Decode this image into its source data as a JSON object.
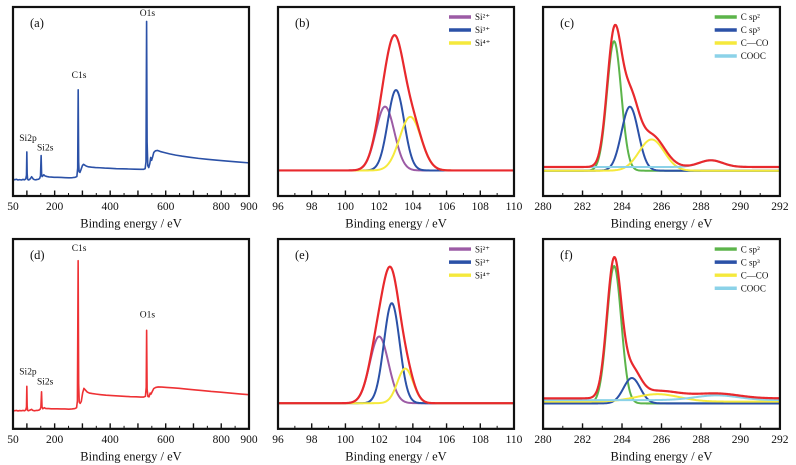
{
  "figure": {
    "background": "#ffffff",
    "axis_color": "#111111",
    "xlabel": "Binding energy / eV"
  },
  "chart_data": [
    {
      "id": "a",
      "type": "line",
      "panel_label": "(a)",
      "xlabel": "Binding energy / eV",
      "xlim": [
        50,
        900
      ],
      "ylim": [
        0,
        1.05
      ],
      "xtick_labels": [
        50,
        200,
        400,
        600,
        800,
        900
      ],
      "major_tick_step": 100,
      "minor_tick_step": 50,
      "grid": false,
      "legend": [],
      "series": [
        {
          "name": "survey-spectrum",
          "color": "#2b51a7",
          "points": [
            [
              50,
              0.095
            ],
            [
              56,
              0.09
            ],
            [
              62,
              0.093
            ],
            [
              68,
              0.089
            ],
            [
              74,
              0.091
            ],
            [
              80,
              0.089
            ],
            [
              86,
              0.092
            ],
            [
              92,
              0.09
            ],
            [
              96,
              0.095
            ],
            [
              98.5,
              0.115
            ],
            [
              99.8,
              0.245
            ],
            [
              101,
              0.125
            ],
            [
              102.5,
              0.095
            ],
            [
              105,
              0.089
            ],
            [
              109,
              0.091
            ],
            [
              113,
              0.097
            ],
            [
              117,
              0.107
            ],
            [
              120,
              0.101
            ],
            [
              123,
              0.094
            ],
            [
              127,
              0.091
            ],
            [
              132,
              0.09
            ],
            [
              137,
              0.092
            ],
            [
              142,
              0.093
            ],
            [
              146,
              0.098
            ],
            [
              149,
              0.112
            ],
            [
              151.3,
              0.225
            ],
            [
              153,
              0.122
            ],
            [
              155,
              0.108
            ],
            [
              158,
              0.113
            ],
            [
              161,
              0.118
            ],
            [
              164,
              0.113
            ],
            [
              168,
              0.11
            ],
            [
              173,
              0.108
            ],
            [
              180,
              0.106
            ],
            [
              188,
              0.105
            ],
            [
              198,
              0.104
            ],
            [
              210,
              0.104
            ],
            [
              224,
              0.103
            ],
            [
              238,
              0.102
            ],
            [
              252,
              0.101
            ],
            [
              264,
              0.102
            ],
            [
              274,
              0.104
            ],
            [
              280,
              0.108
            ],
            [
              283,
              0.155
            ],
            [
              284.8,
              0.59
            ],
            [
              286.5,
              0.19
            ],
            [
              288,
              0.135
            ],
            [
              291,
              0.131
            ],
            [
              295,
              0.147
            ],
            [
              300,
              0.169
            ],
            [
              304,
              0.176
            ],
            [
              308,
              0.172
            ],
            [
              314,
              0.166
            ],
            [
              322,
              0.162
            ],
            [
              333,
              0.16
            ],
            [
              347,
              0.158
            ],
            [
              362,
              0.157
            ],
            [
              380,
              0.155
            ],
            [
              400,
              0.154
            ],
            [
              422,
              0.152
            ],
            [
              444,
              0.151
            ],
            [
              466,
              0.15
            ],
            [
              488,
              0.149
            ],
            [
              508,
              0.148
            ],
            [
              520,
              0.148
            ],
            [
              526,
              0.152
            ],
            [
              529,
              0.19
            ],
            [
              531.2,
              0.97
            ],
            [
              533,
              0.3
            ],
            [
              535.5,
              0.168
            ],
            [
              539,
              0.158
            ],
            [
              543,
              0.182
            ],
            [
              546,
              0.214
            ],
            [
              549,
              0.198
            ],
            [
              553,
              0.218
            ],
            [
              557,
              0.242
            ],
            [
              563,
              0.251
            ],
            [
              571,
              0.253
            ],
            [
              581,
              0.247
            ],
            [
              596,
              0.241
            ],
            [
              614,
              0.234
            ],
            [
              636,
              0.227
            ],
            [
              660,
              0.221
            ],
            [
              688,
              0.215
            ],
            [
              718,
              0.209
            ],
            [
              750,
              0.204
            ],
            [
              784,
              0.199
            ],
            [
              820,
              0.194
            ],
            [
              858,
              0.189
            ],
            [
              900,
              0.184
            ]
          ]
        }
      ],
      "annotations": [
        {
          "text": "Si2p",
          "x": 104,
          "y": 0.305
        },
        {
          "text": "Si2s",
          "x": 166,
          "y": 0.252
        },
        {
          "text": "C1s",
          "x": 288,
          "y": 0.655
        },
        {
          "text": "O1s",
          "x": 534,
          "y": 1.0
        }
      ]
    },
    {
      "id": "b",
      "type": "line-fit",
      "panel_label": "(b)",
      "xlabel": "Binding energy / eV",
      "xlim": [
        96,
        110
      ],
      "ylim": [
        -0.2,
        1.28
      ],
      "xtick_labels": [
        96,
        98,
        100,
        102,
        104,
        106,
        108,
        110
      ],
      "major_tick_step": 2,
      "minor_tick_step": 1,
      "grid": false,
      "envelope_color": "#e8292d",
      "legend_position": "top-right",
      "components": [
        {
          "label": "Si²⁺",
          "color": "#9c5ba5",
          "center": 102.35,
          "height": 0.5,
          "fwhm": 1.3,
          "offset": 0
        },
        {
          "label": "Si³⁺",
          "color": "#2b51a7",
          "center": 103.0,
          "height": 0.63,
          "fwhm": 1.15,
          "offset": 0
        },
        {
          "label": "Si⁴⁺",
          "color": "#f5e93c",
          "center": 103.85,
          "height": 0.42,
          "fwhm": 1.5,
          "offset": 0
        }
      ]
    },
    {
      "id": "c",
      "type": "line-fit",
      "panel_label": "(c)",
      "xlabel": "Binding energy / eV",
      "xlim": [
        280,
        292
      ],
      "ylim": [
        -0.17,
        1.1
      ],
      "xtick_labels": [
        280,
        282,
        284,
        286,
        288,
        290,
        292
      ],
      "major_tick_step": 2,
      "minor_tick_step": 1,
      "grid": false,
      "envelope_color": "#e8292d",
      "legend_position": "top-right",
      "components": [
        {
          "label": "C sp²",
          "color": "#5cb44a",
          "center": 283.6,
          "height": 0.87,
          "fwhm": 0.85,
          "offset": 0
        },
        {
          "label": "C sp³",
          "color": "#2b51a7",
          "center": 284.4,
          "height": 0.43,
          "fwhm": 1.0,
          "offset": 0
        },
        {
          "label": "C—CO",
          "color": "#f5e93c",
          "center": 285.5,
          "height": 0.21,
          "fwhm": 1.5,
          "offset": 0
        },
        {
          "label": "COOC",
          "color": "#8bd2e8",
          "center": 288.5,
          "height": 0.045,
          "fwhm": 1.4,
          "offset": 0.025
        }
      ]
    },
    {
      "id": "d",
      "type": "line",
      "panel_label": "(d)",
      "xlabel": "Binding energy / eV",
      "xlim": [
        50,
        900
      ],
      "ylim": [
        0,
        1.05
      ],
      "xtick_labels": [
        50,
        200,
        400,
        600,
        800,
        900
      ],
      "major_tick_step": 100,
      "minor_tick_step": 50,
      "grid": false,
      "legend": [],
      "series": [
        {
          "name": "survey-spectrum",
          "color": "#ee3134",
          "points": [
            [
              50,
              0.103
            ],
            [
              56,
              0.1
            ],
            [
              62,
              0.102
            ],
            [
              68,
              0.099
            ],
            [
              74,
              0.101
            ],
            [
              80,
              0.1
            ],
            [
              86,
              0.102
            ],
            [
              92,
              0.1
            ],
            [
              96,
              0.105
            ],
            [
              98.5,
              0.12
            ],
            [
              99.8,
              0.235
            ],
            [
              101,
              0.125
            ],
            [
              102.5,
              0.103
            ],
            [
              105,
              0.1
            ],
            [
              109,
              0.102
            ],
            [
              113,
              0.105
            ],
            [
              117,
              0.108
            ],
            [
              120,
              0.103
            ],
            [
              124,
              0.101
            ],
            [
              129,
              0.1
            ],
            [
              134,
              0.102
            ],
            [
              139,
              0.102
            ],
            [
              144,
              0.104
            ],
            [
              148,
              0.109
            ],
            [
              150.5,
              0.12
            ],
            [
              152.8,
              0.205
            ],
            [
              154.5,
              0.122
            ],
            [
              157,
              0.111
            ],
            [
              160,
              0.114
            ],
            [
              163,
              0.117
            ],
            [
              167,
              0.113
            ],
            [
              172,
              0.112
            ],
            [
              179,
              0.112
            ],
            [
              187,
              0.111
            ],
            [
              197,
              0.111
            ],
            [
              209,
              0.111
            ],
            [
              223,
              0.11
            ],
            [
              237,
              0.11
            ],
            [
              251,
              0.109
            ],
            [
              263,
              0.11
            ],
            [
              273,
              0.112
            ],
            [
              279,
              0.117
            ],
            [
              282,
              0.155
            ],
            [
              284.6,
              0.93
            ],
            [
              286.5,
              0.25
            ],
            [
              288.5,
              0.148
            ],
            [
              292,
              0.141
            ],
            [
              296,
              0.152
            ],
            [
              301,
              0.2
            ],
            [
              305.5,
              0.224
            ],
            [
              310,
              0.216
            ],
            [
              317,
              0.204
            ],
            [
              325,
              0.198
            ],
            [
              336,
              0.195
            ],
            [
              350,
              0.192
            ],
            [
              366,
              0.189
            ],
            [
              385,
              0.186
            ],
            [
              406,
              0.184
            ],
            [
              428,
              0.182
            ],
            [
              450,
              0.18
            ],
            [
              472,
              0.178
            ],
            [
              494,
              0.177
            ],
            [
              510,
              0.176
            ],
            [
              521,
              0.176
            ],
            [
              527,
              0.18
            ],
            [
              529.8,
              0.23
            ],
            [
              531.3,
              0.545
            ],
            [
              533,
              0.22
            ],
            [
              536,
              0.179
            ],
            [
              540,
              0.177
            ],
            [
              544,
              0.198
            ],
            [
              547,
              0.192
            ],
            [
              552,
              0.208
            ],
            [
              557,
              0.223
            ],
            [
              564,
              0.229
            ],
            [
              573,
              0.232
            ],
            [
              586,
              0.231
            ],
            [
              603,
              0.229
            ],
            [
              624,
              0.227
            ],
            [
              648,
              0.224
            ],
            [
              674,
              0.22
            ],
            [
              702,
              0.216
            ],
            [
              732,
              0.212
            ],
            [
              764,
              0.207
            ],
            [
              798,
              0.203
            ],
            [
              832,
              0.198
            ],
            [
              866,
              0.193
            ],
            [
              900,
              0.189
            ]
          ]
        }
      ],
      "annotations": [
        {
          "text": "Si2p",
          "x": 104,
          "y": 0.3
        },
        {
          "text": "Si2s",
          "x": 166,
          "y": 0.245
        },
        {
          "text": "C1s",
          "x": 288,
          "y": 0.985
        },
        {
          "text": "O1s",
          "x": 534,
          "y": 0.615
        }
      ]
    },
    {
      "id": "e",
      "type": "line-fit",
      "panel_label": "(e)",
      "xlabel": "Binding energy / eV",
      "xlim": [
        96,
        110
      ],
      "ylim": [
        -0.2,
        1.28
      ],
      "xtick_labels": [
        96,
        98,
        100,
        102,
        104,
        106,
        108,
        110
      ],
      "major_tick_step": 2,
      "minor_tick_step": 1,
      "grid": false,
      "envelope_color": "#e8292d",
      "legend_position": "top-right",
      "components": [
        {
          "label": "Si²⁺",
          "color": "#9c5ba5",
          "center": 102.0,
          "height": 0.52,
          "fwhm": 1.3,
          "offset": 0
        },
        {
          "label": "Si³⁺",
          "color": "#2b51a7",
          "center": 102.75,
          "height": 0.78,
          "fwhm": 1.1,
          "offset": 0
        },
        {
          "label": "Si⁴⁺",
          "color": "#f5e93c",
          "center": 103.55,
          "height": 0.27,
          "fwhm": 1.1,
          "offset": 0
        }
      ]
    },
    {
      "id": "f",
      "type": "line-fit",
      "panel_label": "(f)",
      "xlabel": "Binding energy / eV",
      "xlim": [
        280,
        292
      ],
      "ylim": [
        -0.17,
        1.1
      ],
      "xtick_labels": [
        280,
        282,
        284,
        286,
        288,
        290,
        292
      ],
      "major_tick_step": 2,
      "minor_tick_step": 1,
      "grid": false,
      "envelope_color": "#e8292d",
      "legend_position": "top-right",
      "components": [
        {
          "label": "C sp²",
          "color": "#5cb44a",
          "center": 283.6,
          "height": 0.92,
          "fwhm": 0.85,
          "offset": 0
        },
        {
          "label": "C sp³",
          "color": "#2b51a7",
          "center": 284.5,
          "height": 0.17,
          "fwhm": 1.0,
          "offset": 0
        },
        {
          "label": "C—CO",
          "color": "#f5e93c",
          "center": 285.8,
          "height": 0.05,
          "fwhm": 2.6,
          "offset": 0.012
        },
        {
          "label": "COOC",
          "color": "#8bd2e8",
          "center": 288.8,
          "height": 0.032,
          "fwhm": 2.6,
          "offset": 0.022
        }
      ]
    }
  ]
}
